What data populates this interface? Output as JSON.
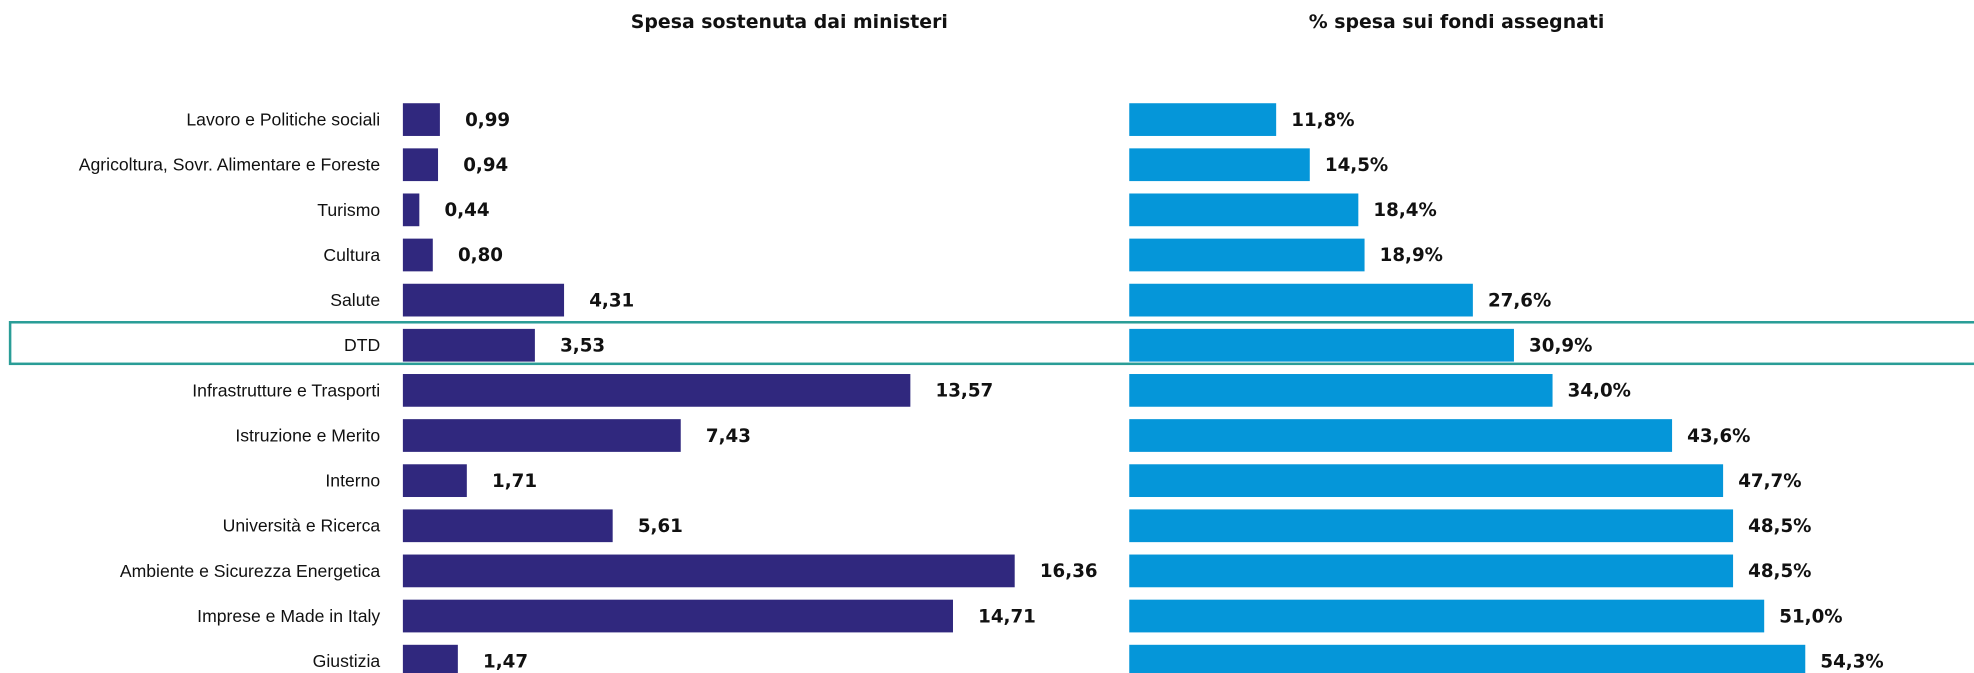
{
  "chart_data": [
    {
      "type": "bar",
      "orientation": "horizontal",
      "title": "Spesa sostenuta dai ministeri",
      "color": "#30287e",
      "categories": [
        "Lavoro e Politiche sociali",
        "Agricoltura, Sovr. Alimentare e Foreste",
        "Turismo",
        "Cultura",
        "Salute",
        "DTD",
        "Infrastrutture e Trasporti",
        "Istruzione e Merito",
        "Interno",
        "Università e Ricerca",
        "Ambiente e Sicurezza Energetica",
        "Imprese e Made in Italy",
        "Giustizia"
      ],
      "values": [
        0.99,
        0.94,
        0.44,
        0.8,
        4.31,
        3.53,
        13.57,
        7.43,
        1.71,
        5.61,
        16.36,
        14.71,
        1.47
      ],
      "value_labels": [
        "0,99",
        "0,94",
        "0,44",
        "0,80",
        "4,31",
        "3,53",
        "13,57",
        "7,43",
        "1,71",
        "5,61",
        "16,36",
        "14,71",
        "1,47"
      ]
    },
    {
      "type": "bar",
      "orientation": "horizontal",
      "title": "% spesa sui fondi assegnati",
      "color": "#0596d9",
      "values": [
        11.8,
        14.5,
        18.4,
        18.9,
        27.6,
        30.9,
        34.0,
        43.6,
        47.7,
        48.5,
        48.5,
        51.0,
        54.3
      ],
      "value_labels": [
        "11,8%",
        "14,5%",
        "18,4%",
        "18,9%",
        "27,6%",
        "30,9%",
        "34,0%",
        "43,6%",
        "47,7%",
        "48,5%",
        "48,5%",
        "51,0%",
        "54,3%"
      ]
    }
  ]
}
